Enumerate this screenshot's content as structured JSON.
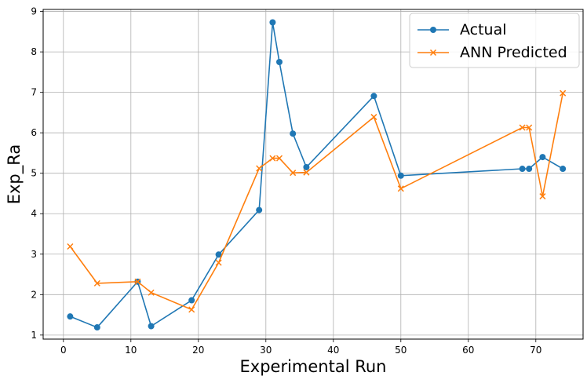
{
  "chart_data": {
    "type": "line",
    "title": "",
    "xlabel": "Experimental Run",
    "ylabel": "Exp_Ra",
    "xlim": [
      -3,
      77
    ],
    "ylim": [
      0.9,
      9.05
    ],
    "xticks": [
      0,
      10,
      20,
      30,
      40,
      50,
      60,
      70
    ],
    "yticks": [
      1,
      2,
      3,
      4,
      5,
      6,
      7,
      8,
      9
    ],
    "grid": true,
    "legend_position": "top-right",
    "series": [
      {
        "name": "Actual",
        "color": "#1f77b4",
        "marker": "circle",
        "x": [
          1,
          5,
          11,
          13,
          19,
          23,
          29,
          31,
          32,
          34,
          36,
          46,
          50,
          68,
          69,
          71,
          74
        ],
        "y": [
          1.46,
          1.19,
          2.32,
          1.22,
          1.86,
          2.99,
          4.09,
          8.73,
          7.75,
          5.98,
          5.15,
          6.91,
          4.94,
          5.11,
          5.11,
          5.4,
          5.11
        ]
      },
      {
        "name": "ANN Predicted",
        "color": "#ff7f0e",
        "marker": "x",
        "x": [
          1,
          5,
          11,
          13,
          19,
          23,
          29,
          31,
          32,
          34,
          36,
          46,
          50,
          68,
          69,
          71,
          74
        ],
        "y": [
          3.19,
          2.28,
          2.32,
          2.05,
          1.63,
          2.79,
          5.12,
          5.37,
          5.37,
          5.01,
          5.02,
          6.39,
          4.62,
          6.13,
          6.13,
          4.43,
          6.98
        ]
      }
    ]
  }
}
